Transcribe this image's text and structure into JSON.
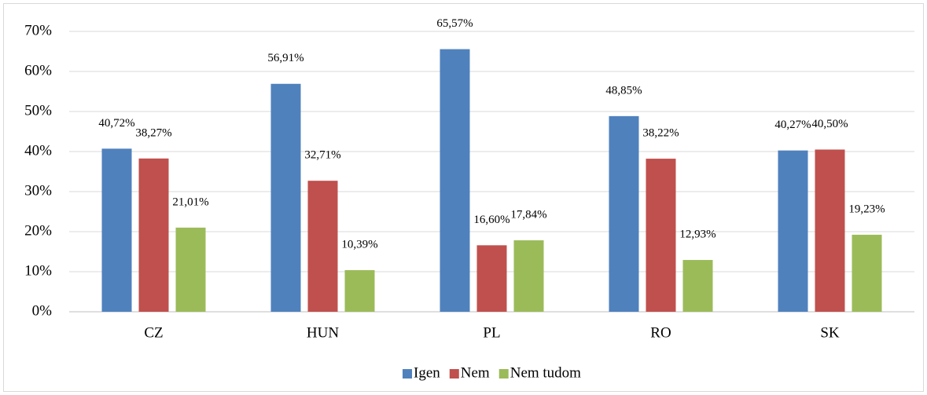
{
  "chart_data": {
    "type": "bar",
    "categories": [
      "CZ",
      "HUN",
      "PL",
      "RO",
      "SK"
    ],
    "series": [
      {
        "name": "Igen",
        "color": "#4f81bd",
        "values": [
          40.72,
          56.91,
          65.57,
          48.85,
          40.27
        ],
        "value_labels": [
          "40,72%",
          "56,91%",
          "65,57%",
          "48,85%",
          "40,27%"
        ]
      },
      {
        "name": "Nem",
        "color": "#c0504d",
        "values": [
          38.27,
          32.71,
          16.6,
          38.22,
          40.5
        ],
        "value_labels": [
          "38,27%",
          "32,71%",
          "16,60%",
          "38,22%",
          "40,50%"
        ]
      },
      {
        "name": "Nem tudom",
        "color": "#9bbb59",
        "values": [
          21.01,
          10.39,
          17.84,
          12.93,
          19.23
        ],
        "value_labels": [
          "21,01%",
          "10,39%",
          "17,84%",
          "12,93%",
          "19,23%"
        ]
      }
    ],
    "ylim": [
      0,
      70
    ],
    "yticks": [
      {
        "value": 0,
        "label": "0%"
      },
      {
        "value": 10,
        "label": "10%"
      },
      {
        "value": 20,
        "label": "20%"
      },
      {
        "value": 30,
        "label": "30%"
      },
      {
        "value": 40,
        "label": "40%"
      },
      {
        "value": 50,
        "label": "50%"
      },
      {
        "value": 60,
        "label": "60%"
      },
      {
        "value": 70,
        "label": "70%"
      }
    ],
    "grid": true,
    "legend": "bottom"
  }
}
